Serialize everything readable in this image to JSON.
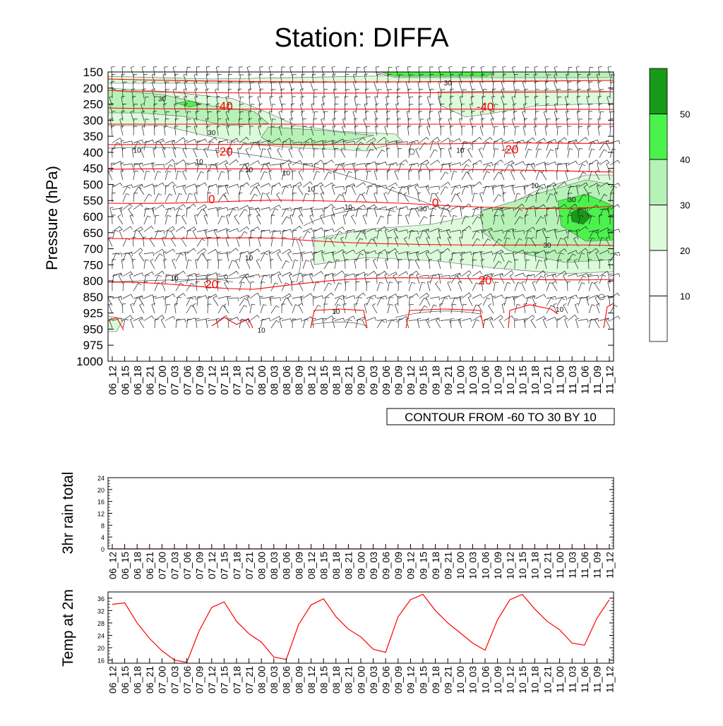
{
  "title": "Station: DIFFA",
  "colors": {
    "isotherm": "#ff0000",
    "rh_10": "#ffffff",
    "rh_20": "#dbfbdb",
    "rh_30": "#b6f2b6",
    "rh_40": "#4cf24c",
    "rh_50": "#179a17",
    "line": "#000000",
    "temp_line": "#ff0000"
  },
  "chart_data": [
    {
      "type": "contour",
      "name": "cross-section",
      "ylabel": "Pressure (hPa)",
      "y_levels": [
        150,
        200,
        250,
        300,
        350,
        400,
        450,
        500,
        550,
        600,
        650,
        700,
        750,
        800,
        850,
        925,
        950,
        975,
        1000
      ],
      "x_ticks": [
        "06_12",
        "06_15",
        "06_18",
        "06_21",
        "07_00",
        "07_03",
        "07_06",
        "07_09",
        "07_12",
        "07_15",
        "07_18",
        "07_21",
        "08_00",
        "08_03",
        "08_06",
        "08_09",
        "08_12",
        "08_15",
        "08_18",
        "08_21",
        "09_00",
        "09_03",
        "09_06",
        "09_09",
        "09_12",
        "09_15",
        "09_18",
        "09_21",
        "10_00",
        "10_03",
        "10_06",
        "10_09",
        "10_12",
        "10_15",
        "10_18",
        "10_21",
        "11_00",
        "11_03",
        "11_06",
        "11_09",
        "11_12"
      ],
      "contour_info": "CONTOUR FROM -60 TO 30 BY 10",
      "isotherm_labels": [
        {
          "text": "-40",
          "x_index": 9,
          "p": 255
        },
        {
          "text": "-40",
          "x_index": 30,
          "p": 258
        },
        {
          "text": "-20",
          "x_index": 9,
          "p": 397
        },
        {
          "text": "-20",
          "x_index": 32,
          "p": 390
        },
        {
          "text": "0",
          "x_index": 8,
          "p": 545
        },
        {
          "text": "0",
          "x_index": 26,
          "p": 556
        },
        {
          "text": "20",
          "x_index": 8,
          "p": 810
        },
        {
          "text": "20",
          "x_index": 30,
          "p": 798
        }
      ],
      "rh_labels": [
        {
          "text": "30",
          "x_index": 4,
          "p": 235
        },
        {
          "text": "30",
          "x_index": 8,
          "p": 340
        },
        {
          "text": "30",
          "x_index": 27,
          "p": 185
        },
        {
          "text": "10",
          "x_index": 2,
          "p": 395
        },
        {
          "text": "10",
          "x_index": 7,
          "p": 430
        },
        {
          "text": "10",
          "x_index": 11,
          "p": 455
        },
        {
          "text": "10",
          "x_index": 14,
          "p": 465
        },
        {
          "text": "10",
          "x_index": 16,
          "p": 515
        },
        {
          "text": "10",
          "x_index": 19,
          "p": 572
        },
        {
          "text": "10",
          "x_index": 11,
          "p": 730
        },
        {
          "text": "10",
          "x_index": 5,
          "p": 793
        },
        {
          "text": "10",
          "x_index": 12,
          "p": 952
        },
        {
          "text": "10",
          "x_index": 18,
          "p": 920
        },
        {
          "text": "10",
          "x_index": 28,
          "p": 395
        },
        {
          "text": "10",
          "x_index": 34,
          "p": 504
        },
        {
          "text": "10",
          "x_index": 36,
          "p": 910
        },
        {
          "text": "30",
          "x_index": 25,
          "p": 577
        },
        {
          "text": "30",
          "x_index": 35,
          "p": 690
        },
        {
          "text": "30",
          "x_index": 37,
          "p": 548
        }
      ],
      "colorbar": {
        "labels": [
          "10",
          "20",
          "30",
          "40",
          "50"
        ]
      }
    },
    {
      "type": "line",
      "name": "rain",
      "ylabel": "3hr rain total",
      "y_ticks": [
        0,
        4,
        8,
        12,
        16,
        20,
        24
      ],
      "ylim": [
        0,
        24
      ],
      "values": [
        0,
        0,
        0,
        0,
        0,
        0,
        0,
        0,
        0,
        0,
        0,
        0,
        0,
        0,
        0,
        0,
        0,
        0,
        0,
        0,
        0,
        0,
        0,
        0,
        0,
        0,
        0,
        0,
        0,
        0,
        0,
        0,
        0,
        0,
        0,
        0,
        0,
        0,
        0,
        0,
        0
      ]
    },
    {
      "type": "line",
      "name": "temperature",
      "ylabel": "Temp at 2m",
      "y_ticks": [
        16,
        20,
        24,
        28,
        32,
        36
      ],
      "ylim": [
        15,
        38
      ],
      "values": [
        34,
        34.5,
        28,
        23,
        19,
        16,
        15.3,
        25.5,
        33,
        34.8,
        28.5,
        24.5,
        21.8,
        17,
        16.2,
        27.5,
        33.8,
        35.8,
        30,
        26,
        23.5,
        19.5,
        18.5,
        30,
        35.5,
        37.2,
        32,
        28,
        24.8,
        21.5,
        19.2,
        29,
        35.5,
        37.2,
        32.5,
        28.5,
        25.8,
        21.5,
        20.8,
        29.5,
        35.5
      ]
    }
  ]
}
